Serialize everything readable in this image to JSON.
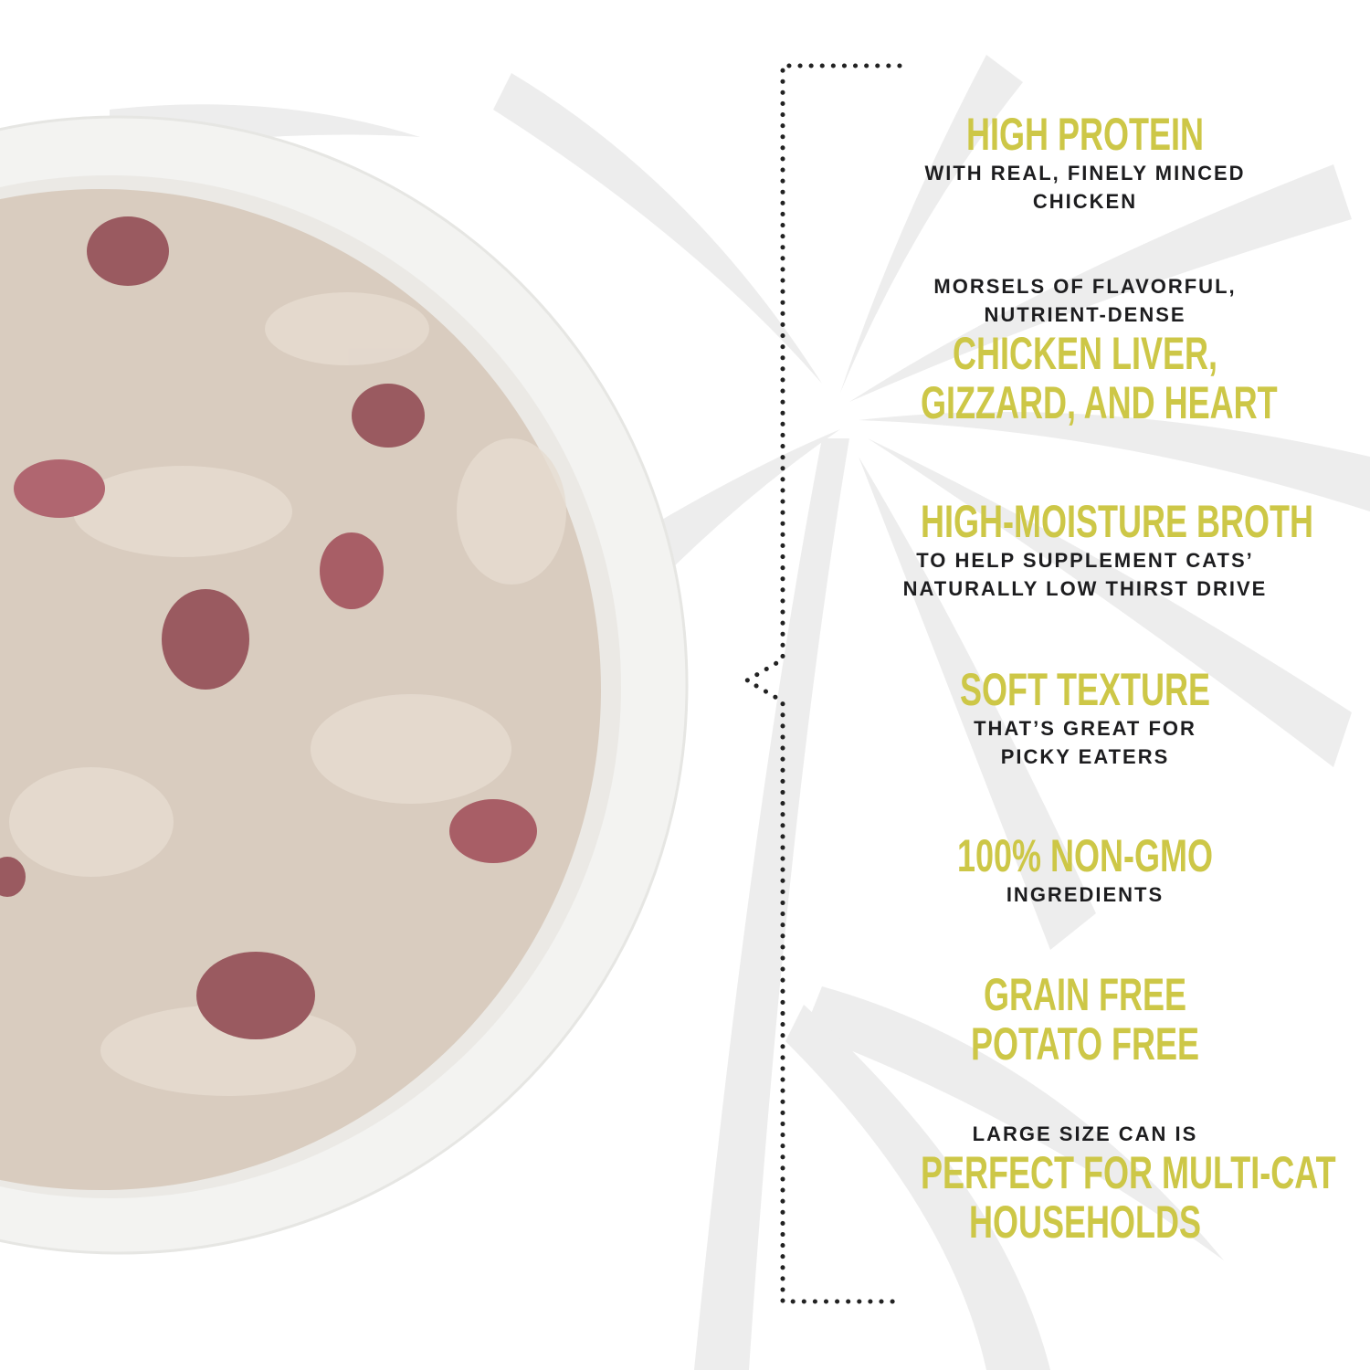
{
  "colors": {
    "accent": "#cdc747",
    "text": "#1d1d1f",
    "bowl": "#f4f4f2",
    "food": "#d8cbbd",
    "morsel": "#9a5a60"
  },
  "features": [
    {
      "headline": [
        "HIGH PROTEIN"
      ],
      "sub_after": [
        "WITH REAL, FINELY MINCED",
        "CHICKEN"
      ]
    },
    {
      "sub_before": [
        "MORSELS OF FLAVORFUL,",
        "NUTRIENT-DENSE"
      ],
      "headline": [
        "CHICKEN LIVER,",
        "GIZZARD, AND HEART"
      ]
    },
    {
      "headline": [
        "HIGH-MOISTURE BROTH"
      ],
      "sub_after": [
        "TO HELP SUPPLEMENT CATS’",
        "NATURALLY LOW THIRST DRIVE"
      ]
    },
    {
      "headline": [
        "SOFT TEXTURE"
      ],
      "sub_after": [
        "THAT’S GREAT FOR",
        "PICKY EATERS"
      ]
    },
    {
      "headline": [
        "100% NON-GMO"
      ],
      "sub_after": [
        "INGREDIENTS"
      ]
    },
    {
      "headline": [
        "GRAIN FREE",
        "POTATO FREE"
      ]
    },
    {
      "sub_before": [
        "LARGE SIZE CAN IS"
      ],
      "headline": [
        "PERFECT FOR MULTI-CAT",
        "HOUSEHOLDS"
      ]
    }
  ]
}
